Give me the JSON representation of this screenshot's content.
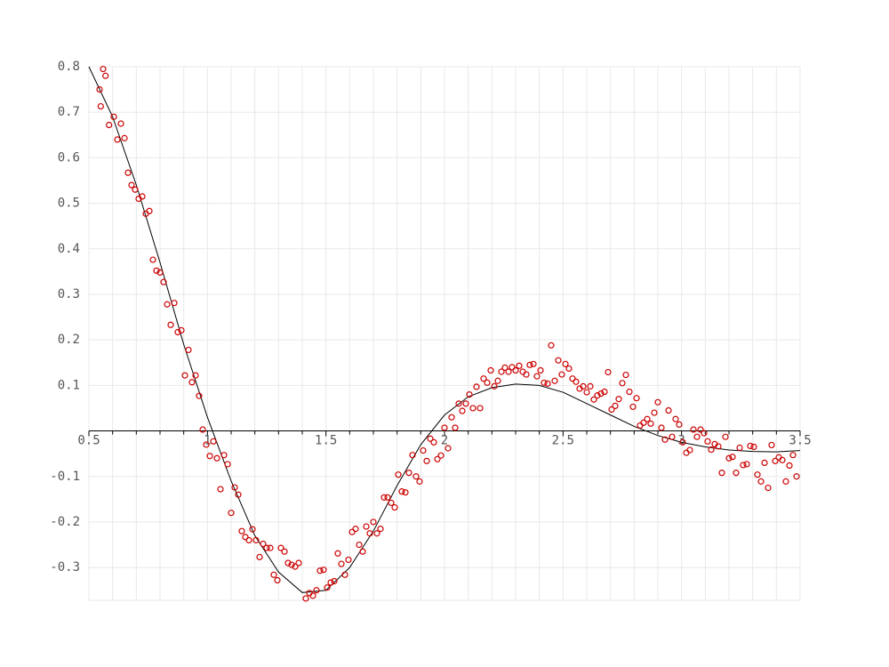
{
  "chart_data": {
    "type": "scatter",
    "xlim": [
      0.5,
      3.5
    ],
    "ylim": [
      -0.372,
      0.8
    ],
    "xticks": [
      0.5,
      1,
      1.5,
      2,
      2.5,
      3,
      3.5
    ],
    "xminorticks": [
      0.6,
      0.7,
      0.8,
      0.9,
      1.1,
      1.2,
      1.3,
      1.4,
      1.6,
      1.7,
      1.8,
      1.9,
      2.1,
      2.2,
      2.3,
      2.4,
      2.6,
      2.7,
      2.8,
      2.9,
      3.1,
      3.2,
      3.3,
      3.4
    ],
    "yticks": [
      -0.3,
      -0.2,
      -0.1,
      0.1,
      0.2,
      0.3,
      0.4,
      0.5,
      0.6,
      0.7,
      0.8
    ],
    "grid": true,
    "scatter": {
      "color": "#cc0000",
      "x": [
        0.545,
        0.55,
        0.56,
        0.57,
        0.585,
        0.605,
        0.62,
        0.635,
        0.65,
        0.665,
        0.68,
        0.695,
        0.71,
        0.725,
        0.74,
        0.755,
        0.77,
        0.785,
        0.8,
        0.815,
        0.83,
        0.845,
        0.86,
        0.875,
        0.89,
        0.905,
        0.92,
        0.935,
        0.95,
        0.965,
        0.98,
        0.995,
        1.01,
        1.025,
        1.04,
        1.055,
        1.07,
        1.085,
        1.1,
        1.115,
        1.13,
        1.145,
        1.16,
        1.175,
        1.19,
        1.205,
        1.22,
        1.235,
        1.25,
        1.265,
        1.28,
        1.295,
        1.31,
        1.325,
        1.34,
        1.355,
        1.37,
        1.385,
        1.415,
        1.43,
        1.445,
        1.46,
        1.475,
        1.49,
        1.505,
        1.52,
        1.535,
        1.55,
        1.565,
        1.58,
        1.595,
        1.61,
        1.625,
        1.64,
        1.655,
        1.67,
        1.685,
        1.7,
        1.715,
        1.73,
        1.745,
        1.76,
        1.775,
        1.79,
        1.805,
        1.82,
        1.835,
        1.85,
        1.865,
        1.88,
        1.895,
        1.91,
        1.925,
        1.94,
        1.955,
        1.97,
        1.985,
        2.0,
        2.015,
        2.03,
        2.045,
        2.06,
        2.075,
        2.09,
        2.105,
        2.12,
        2.135,
        2.15,
        2.165,
        2.18,
        2.195,
        2.21,
        2.225,
        2.24,
        2.255,
        2.27,
        2.285,
        2.3,
        2.315,
        2.33,
        2.345,
        2.36,
        2.375,
        2.39,
        2.405,
        2.42,
        2.435,
        2.45,
        2.465,
        2.48,
        2.495,
        2.51,
        2.525,
        2.54,
        2.555,
        2.57,
        2.585,
        2.6,
        2.615,
        2.63,
        2.645,
        2.66,
        2.675,
        2.69,
        2.705,
        2.72,
        2.735,
        2.75,
        2.765,
        2.78,
        2.795,
        2.81,
        2.825,
        2.84,
        2.855,
        2.87,
        2.885,
        2.9,
        2.915,
        2.93,
        2.945,
        2.96,
        2.975,
        2.99,
        3.005,
        3.02,
        3.035,
        3.05,
        3.065,
        3.08,
        3.095,
        3.11,
        3.125,
        3.14,
        3.155,
        3.17,
        3.185,
        3.2,
        3.215,
        3.23,
        3.245,
        3.26,
        3.275,
        3.29,
        3.305,
        3.32,
        3.335,
        3.35,
        3.365,
        3.38,
        3.395,
        3.41,
        3.425,
        3.44,
        3.455,
        3.47,
        3.485
      ],
      "y": [
        0.75,
        0.713,
        0.795,
        0.78,
        0.672,
        0.69,
        0.64,
        0.675,
        0.643,
        0.567,
        0.54,
        0.53,
        0.51,
        0.515,
        0.477,
        0.483,
        0.376,
        0.352,
        0.348,
        0.327,
        0.278,
        0.233,
        0.281,
        0.217,
        0.221,
        0.122,
        0.178,
        0.107,
        0.122,
        0.077,
        0.003,
        -0.03,
        -0.055,
        -0.023,
        -0.06,
        -0.128,
        -0.053,
        -0.073,
        -0.18,
        -0.124,
        -0.14,
        -0.22,
        -0.233,
        -0.24,
        -0.216,
        -0.24,
        -0.277,
        -0.248,
        -0.257,
        -0.257,
        -0.316,
        -0.328,
        -0.257,
        -0.265,
        -0.29,
        -0.294,
        -0.298,
        -0.29,
        -0.368,
        -0.356,
        -0.362,
        -0.35,
        -0.307,
        -0.305,
        -0.344,
        -0.333,
        -0.33,
        -0.269,
        -0.292,
        -0.316,
        -0.283,
        -0.222,
        -0.215,
        -0.25,
        -0.265,
        -0.21,
        -0.225,
        -0.2,
        -0.225,
        -0.215,
        -0.146,
        -0.146,
        -0.158,
        -0.168,
        -0.096,
        -0.133,
        -0.135,
        -0.092,
        -0.053,
        -0.1,
        -0.111,
        -0.043,
        -0.066,
        -0.017,
        -0.025,
        -0.062,
        -0.054,
        0.007,
        -0.038,
        0.03,
        0.007,
        0.06,
        0.044,
        0.06,
        0.08,
        0.05,
        0.097,
        0.05,
        0.115,
        0.106,
        0.133,
        0.098,
        0.11,
        0.13,
        0.139,
        0.13,
        0.14,
        0.133,
        0.143,
        0.13,
        0.124,
        0.145,
        0.147,
        0.12,
        0.133,
        0.106,
        0.104,
        0.188,
        0.11,
        0.155,
        0.124,
        0.147,
        0.137,
        0.115,
        0.108,
        0.093,
        0.098,
        0.085,
        0.098,
        0.069,
        0.078,
        0.082,
        0.086,
        0.129,
        0.047,
        0.055,
        0.07,
        0.105,
        0.123,
        0.086,
        0.053,
        0.072,
        0.012,
        0.018,
        0.026,
        0.016,
        0.04,
        0.063,
        0.007,
        -0.019,
        0.045,
        -0.013,
        0.026,
        0.014,
        -0.025,
        -0.048,
        -0.042,
        0.003,
        -0.013,
        0.003,
        -0.005,
        -0.023,
        -0.041,
        -0.029,
        -0.034,
        -0.092,
        -0.013,
        -0.06,
        -0.057,
        -0.092,
        -0.037,
        -0.075,
        -0.073,
        -0.033,
        -0.035,
        -0.096,
        -0.111,
        -0.07,
        -0.125,
        -0.031,
        -0.066,
        -0.058,
        -0.064,
        -0.111,
        -0.076,
        -0.053,
        -0.1
      ]
    },
    "line": {
      "color": "#000000",
      "x": [
        0.5,
        0.6,
        0.7,
        0.8,
        0.9,
        1.0,
        1.1,
        1.2,
        1.3,
        1.4,
        1.5,
        1.6,
        1.7,
        1.8,
        1.9,
        2.0,
        2.1,
        2.2,
        2.3,
        2.4,
        2.5,
        2.6,
        2.7,
        2.8,
        2.9,
        3.0,
        3.1,
        3.2,
        3.3,
        3.4,
        3.5
      ],
      "y": [
        0.8,
        0.69,
        0.54,
        0.37,
        0.19,
        0.03,
        -0.11,
        -0.23,
        -0.31,
        -0.355,
        -0.35,
        -0.3,
        -0.22,
        -0.12,
        -0.03,
        0.035,
        0.075,
        0.095,
        0.103,
        0.1,
        0.085,
        0.06,
        0.035,
        0.01,
        -0.01,
        -0.025,
        -0.035,
        -0.042,
        -0.045,
        -0.046,
        -0.043
      ]
    }
  }
}
